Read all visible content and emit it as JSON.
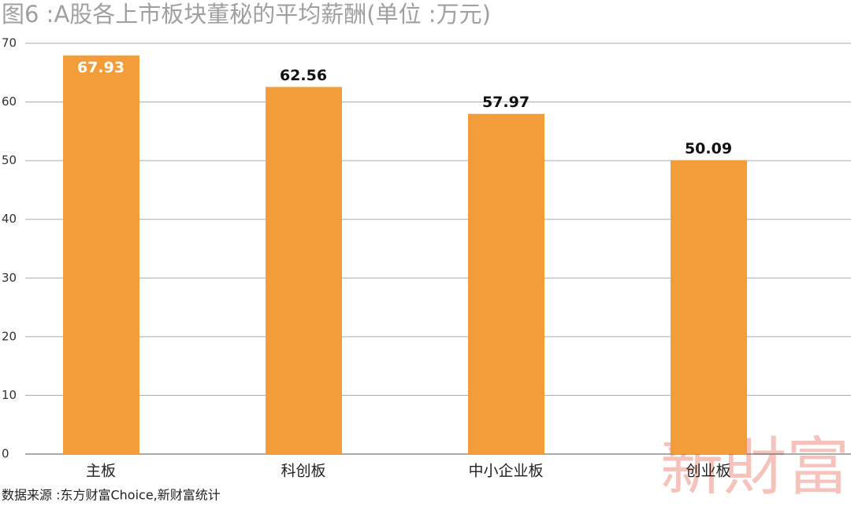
{
  "chart_data": {
    "type": "bar",
    "title": "图6 :A股各上市板块董秘的平均薪酬(单位 :万元)",
    "source": "数据来源 :东方财富Choice,新财富统计",
    "watermark": "新財富",
    "categories": [
      "主板",
      "科创板",
      "中小企业板",
      "创业板"
    ],
    "values": [
      67.93,
      62.56,
      57.97,
      50.09
    ],
    "color": "#f39c3a",
    "ylim": [
      0,
      70
    ],
    "yticks": [
      0,
      10,
      20,
      30,
      40,
      50,
      60,
      70
    ],
    "grid": true
  }
}
